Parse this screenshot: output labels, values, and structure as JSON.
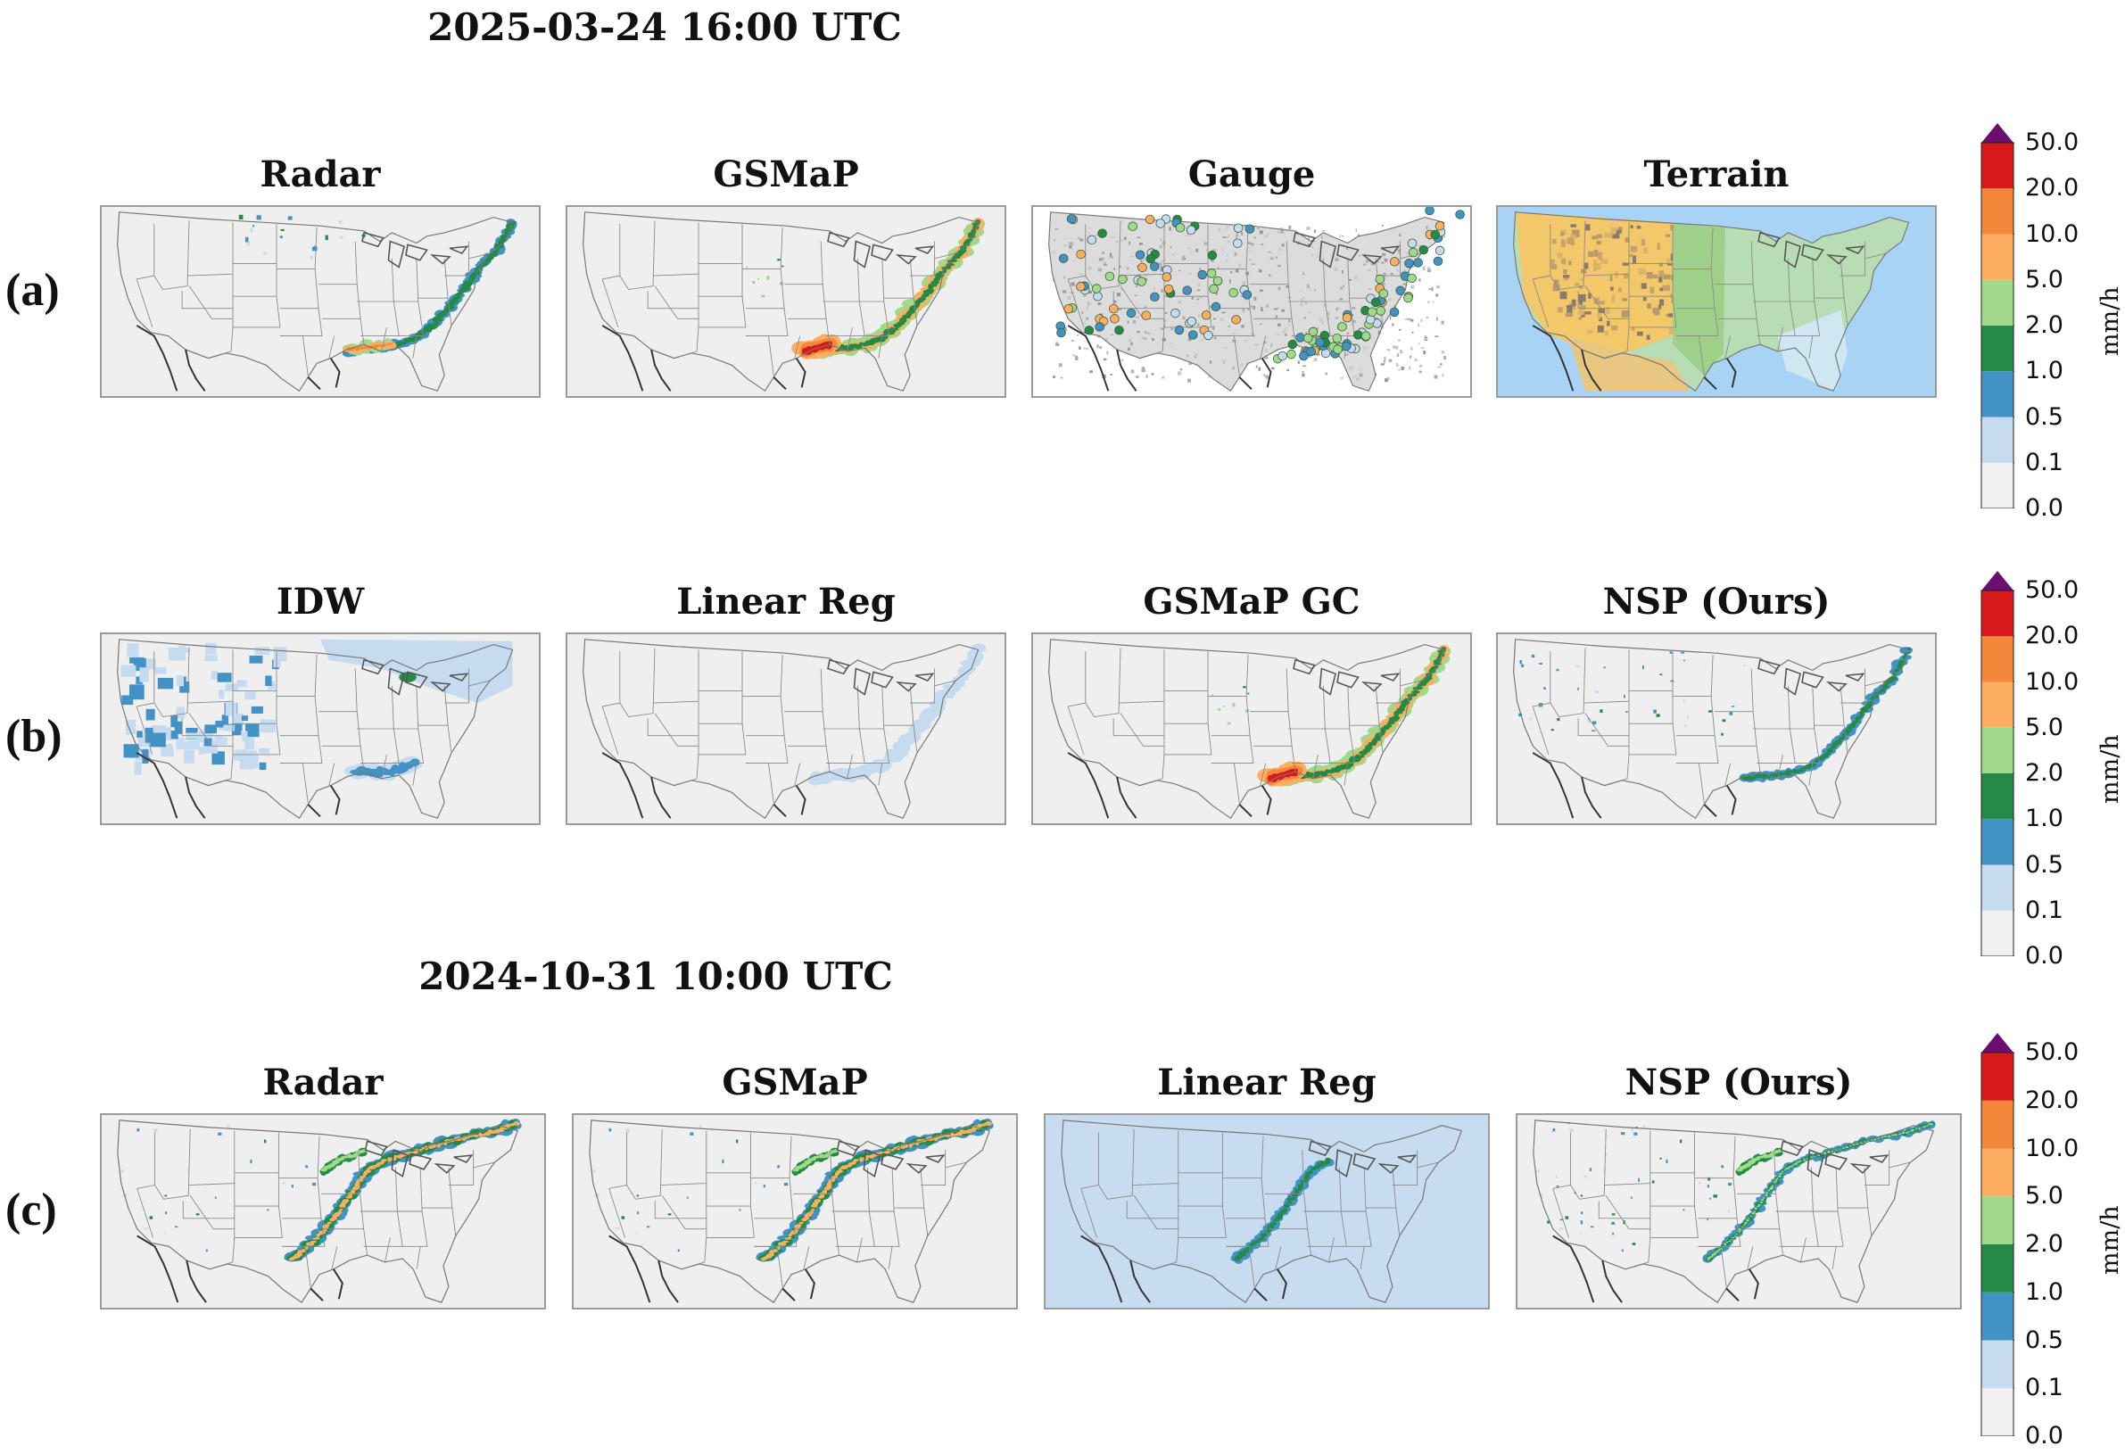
{
  "colors": {
    "levels": [
      "#f0f0f0",
      "#c6dbef",
      "#4292c6",
      "#238b45",
      "#a1d98b",
      "#fdae61",
      "#f5873a",
      "#d7191c"
    ],
    "extend": "#6a0e6f",
    "land": "#efefef",
    "border": "#9a9a9a",
    "coast": "#555555",
    "low_rain": "#c6dbef"
  },
  "groups": [
    {
      "date": "2025-03-24 16:00 UTC",
      "rows": [
        {
          "label": "(a)",
          "panels": [
            {
              "title": "Radar",
              "type": "precip",
              "scene": "s1"
            },
            {
              "title": "GSMaP",
              "type": "precip",
              "scene": "s1"
            },
            {
              "title": "Gauge",
              "type": "gauge",
              "scene": "s1"
            },
            {
              "title": "Terrain",
              "type": "terrain",
              "scene": "none"
            }
          ],
          "colorbar": {
            "ticks": [
              "0.0",
              "0.1",
              "0.5",
              "1.0",
              "2.0",
              "5.0",
              "10.0",
              "20.0",
              "50.0"
            ],
            "unit": "mm/h"
          }
        },
        {
          "label": "(b)",
          "panels": [
            {
              "title": "IDW",
              "type": "precip",
              "scene": "s1"
            },
            {
              "title": "Linear Reg",
              "type": "precip",
              "scene": "s1"
            },
            {
              "title": "GSMaP GC",
              "type": "precip",
              "scene": "s1"
            },
            {
              "title": "NSP (Ours)",
              "type": "precip",
              "scene": "s1"
            }
          ],
          "colorbar": {
            "ticks": [
              "0.0",
              "0.1",
              "0.5",
              "1.0",
              "2.0",
              "5.0",
              "10.0",
              "20.0",
              "50.0"
            ],
            "unit": "mm/h"
          }
        }
      ]
    },
    {
      "date": "2024-10-31 10:00 UTC",
      "rows": [
        {
          "label": "(c)",
          "panels": [
            {
              "title": "Radar",
              "type": "precip",
              "scene": "s2"
            },
            {
              "title": "GSMaP",
              "type": "precip",
              "scene": "s2"
            },
            {
              "title": "Linear Reg",
              "type": "precip",
              "scene": "s2"
            },
            {
              "title": "NSP (Ours)",
              "type": "precip",
              "scene": "s2"
            }
          ],
          "colorbar": {
            "ticks": [
              "0.0",
              "0.1",
              "0.5",
              "1.0",
              "2.0",
              "5.0",
              "10.0",
              "20.0",
              "50.0"
            ],
            "unit": "mm/h"
          }
        }
      ]
    }
  ]
}
